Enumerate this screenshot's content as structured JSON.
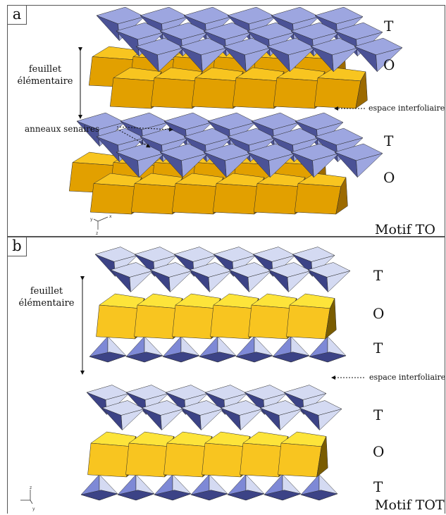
{
  "panel_a": {
    "tag": "a",
    "layer_labels": [
      "T",
      "O",
      "T",
      "O"
    ],
    "sheet_label": "feuillet\nélémentaire",
    "interlayer_label": "espace interfoliaire",
    "rings_label": "anneaux senaires",
    "motif_label": "Motif TO",
    "axes": [
      "y",
      "x",
      "z"
    ]
  },
  "panel_b": {
    "tag": "b",
    "layer_labels": [
      "T",
      "O",
      "T",
      "T",
      "O",
      "T"
    ],
    "sheet_label": "feuillet\nélémentaire",
    "interlayer_label": "espace interfoliaire",
    "motif_label": "Motif TOT",
    "axes": [
      "z",
      "y"
    ]
  },
  "colors": {
    "tetra_a_light": "#9da6e0",
    "tetra_a_dark": "#4b5296",
    "tetra_b_light": "#d4daf2",
    "tetra_b_mid": "#7e89d6",
    "tetra_b_dark": "#3c4386",
    "octa_light": "#f8c520",
    "octa_mid": "#e2a000",
    "octa_dark": "#9c6a00",
    "octa_b_light": "#fde43a",
    "octa_b_dark": "#7a5c00"
  }
}
